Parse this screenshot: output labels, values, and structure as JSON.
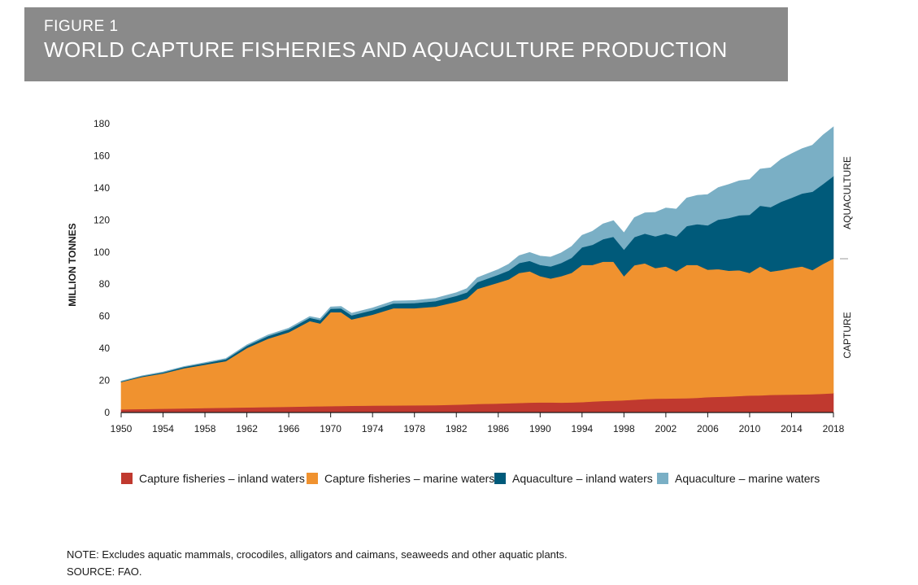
{
  "figure": {
    "label": "FIGURE 1",
    "title": "WORLD CAPTURE FISHERIES AND AQUACULTURE PRODUCTION",
    "banner_color": "#8a8a8a"
  },
  "note": "NOTE: Excludes aquatic mammals, crocodiles, alligators and caimans, seaweeds and other aquatic plants.",
  "source": "SOURCE: FAO.",
  "side_labels": {
    "upper": "AQUACULTURE",
    "lower": "CAPTURE"
  },
  "chart_data": {
    "type": "area",
    "stacked": true,
    "ylabel": "MILLION TONNES",
    "xlabel": "",
    "xlim": [
      1950,
      2018
    ],
    "ylim": [
      0,
      180
    ],
    "x_ticks": [
      1950,
      1954,
      1958,
      1962,
      1966,
      1970,
      1974,
      1978,
      1982,
      1986,
      1990,
      1994,
      1998,
      2002,
      2006,
      2010,
      2014,
      2018
    ],
    "y_ticks": [
      0,
      20,
      40,
      60,
      80,
      100,
      120,
      140,
      160,
      180
    ],
    "grid": false,
    "legend_position": "bottom",
    "x": [
      1950,
      1952,
      1954,
      1956,
      1958,
      1960,
      1962,
      1964,
      1966,
      1968,
      1969,
      1970,
      1971,
      1972,
      1974,
      1976,
      1978,
      1980,
      1982,
      1983,
      1984,
      1986,
      1987,
      1988,
      1989,
      1990,
      1991,
      1992,
      1993,
      1994,
      1995,
      1996,
      1997,
      1998,
      1999,
      2000,
      2001,
      2002,
      2003,
      2004,
      2005,
      2006,
      2007,
      2008,
      2009,
      2010,
      2011,
      2012,
      2013,
      2014,
      2015,
      2016,
      2017,
      2018
    ],
    "series": [
      {
        "name": "Capture fisheries – inland waters",
        "color": "#c0392f",
        "values": [
          2,
          2.2,
          2.4,
          2.6,
          2.8,
          3,
          3.2,
          3.4,
          3.6,
          3.8,
          3.9,
          4,
          4.1,
          4.2,
          4.3,
          4.4,
          4.5,
          4.6,
          4.9,
          5.1,
          5.3,
          5.6,
          5.8,
          6,
          6.2,
          6.3,
          6.3,
          6.2,
          6.3,
          6.5,
          6.9,
          7.2,
          7.4,
          7.6,
          8,
          8.4,
          8.6,
          8.7,
          8.8,
          8.9,
          9.2,
          9.6,
          9.8,
          10,
          10.3,
          10.6,
          10.7,
          11,
          11.1,
          11.2,
          11.3,
          11.4,
          11.7,
          12
        ]
      },
      {
        "name": "Capture fisheries – marine waters",
        "color": "#f0922f",
        "values": [
          17,
          20,
          22,
          25,
          27,
          29,
          37,
          42.6,
          46.4,
          53.2,
          51.6,
          58.5,
          58.4,
          53.8,
          56.7,
          60.6,
          60.5,
          61.4,
          64.1,
          65.9,
          71.7,
          75.4,
          77.2,
          81,
          81.8,
          78.7,
          77.2,
          78.8,
          80.7,
          85.5,
          85.1,
          86.8,
          86.6,
          77.4,
          83.8,
          84.6,
          81.4,
          82.3,
          79.2,
          83.1,
          82.8,
          79.4,
          79.6,
          78.4,
          78.4,
          76.4,
          80.3,
          76.8,
          77.7,
          78.8,
          79.7,
          77.4,
          80.9,
          84
        ]
      },
      {
        "name": "Aquaculture – inland waters",
        "color": "#005a7a",
        "values": [
          0.4,
          0.5,
          0.6,
          0.8,
          1,
          1.2,
          1.4,
          1.6,
          1.8,
          2,
          2.1,
          2.2,
          2.4,
          2.6,
          2.8,
          3,
          3.2,
          3.4,
          3.7,
          3.9,
          4.2,
          4.9,
          5.5,
          6.2,
          6.5,
          7,
          7.5,
          8.2,
          9.4,
          11,
          12.5,
          14,
          15.5,
          16.5,
          17.5,
          18.5,
          19.8,
          20.5,
          21.8,
          24.2,
          25.4,
          27.6,
          30.8,
          32.8,
          34.2,
          36.2,
          37.9,
          40.2,
          42.5,
          43.8,
          45.5,
          48.8,
          49.8,
          51.3
        ]
      },
      {
        "name": "Aquaculture – marine waters",
        "color": "#7aafc5",
        "values": [
          0.2,
          0.2,
          0.3,
          0.3,
          0.4,
          0.5,
          0.6,
          0.7,
          0.8,
          0.9,
          1,
          1.1,
          1.2,
          1.3,
          1.4,
          1.5,
          1.6,
          1.8,
          2,
          2.3,
          2.8,
          3.3,
          4,
          4.6,
          5.3,
          5.5,
          5.9,
          6.3,
          7.1,
          7.5,
          8.5,
          9.6,
          10.1,
          10.5,
          12.2,
          13,
          15,
          16,
          17,
          17.5,
          18,
          19.3,
          20,
          21,
          21.5,
          22,
          22.8,
          24.5,
          26.5,
          27.5,
          28,
          29,
          30.5,
          30.7
        ]
      }
    ]
  }
}
